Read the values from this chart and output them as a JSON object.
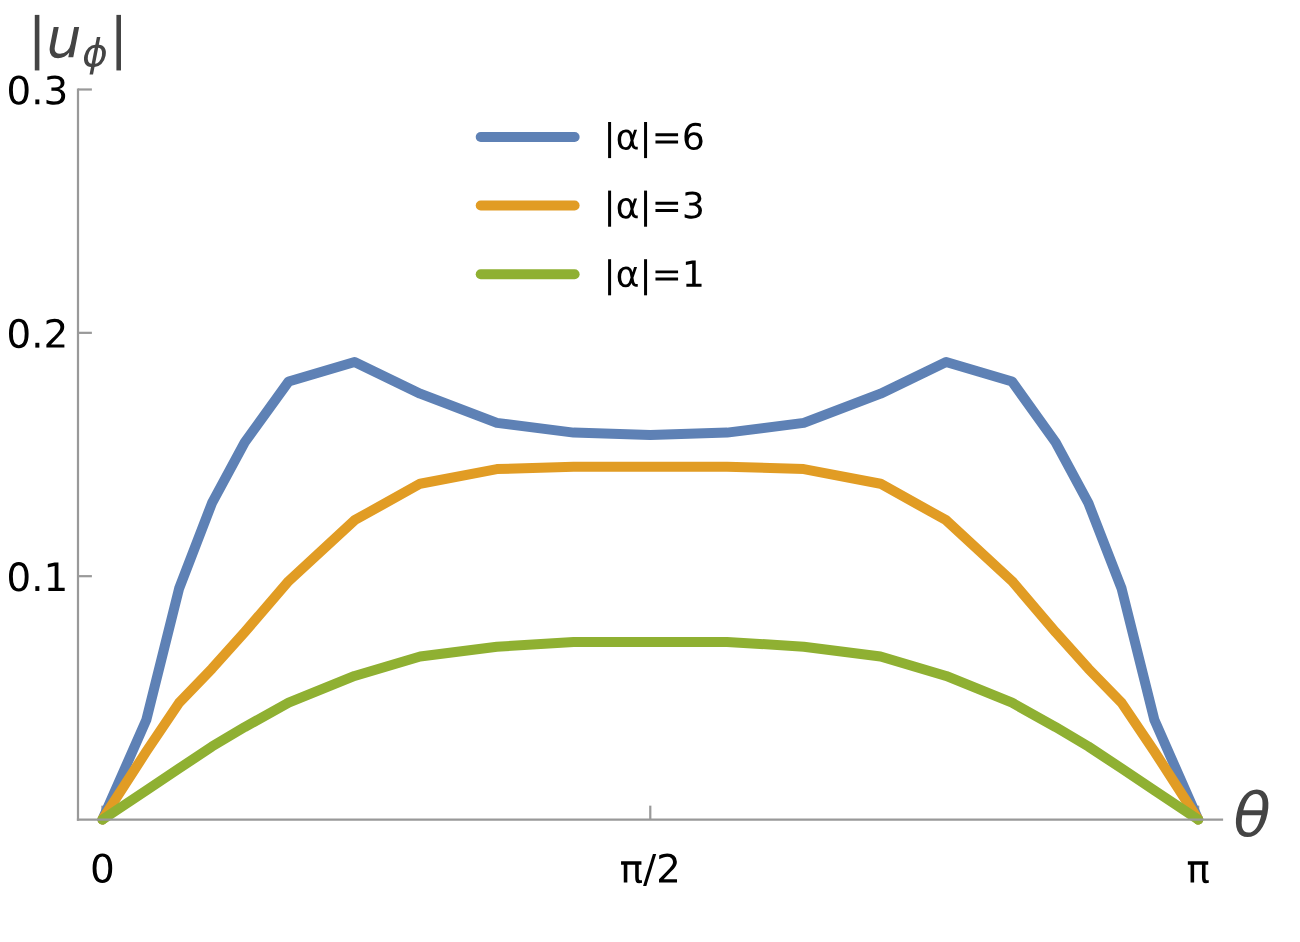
{
  "chart_data": {
    "type": "line",
    "xlabel": "θ",
    "ylabel": "|u$_{ϕ}$|",
    "x": [
      0,
      0.126,
      0.22,
      0.314,
      0.408,
      0.534,
      0.723,
      0.911,
      1.131,
      1.351,
      1.571,
      1.791,
      2.011,
      2.231,
      2.419,
      2.608,
      2.733,
      2.827,
      2.922,
      3.016,
      3.142
    ],
    "series": [
      {
        "name": "|α|=6",
        "color": "#5e81b5",
        "values": [
          0,
          0.041,
          0.095,
          0.13,
          0.155,
          0.18,
          0.188,
          0.175,
          0.163,
          0.159,
          0.158,
          0.159,
          0.163,
          0.175,
          0.188,
          0.18,
          0.155,
          0.13,
          0.095,
          0.041,
          0
        ]
      },
      {
        "name": "|α|=3",
        "color": "#e19c24",
        "values": [
          0,
          0.028,
          0.048,
          0.062,
          0.077,
          0.098,
          0.123,
          0.138,
          0.144,
          0.145,
          0.145,
          0.145,
          0.144,
          0.138,
          0.123,
          0.098,
          0.077,
          0.062,
          0.048,
          0.028,
          0
        ]
      },
      {
        "name": "|α|=1",
        "color": "#8fb032",
        "values": [
          0,
          0.012,
          0.021,
          0.03,
          0.038,
          0.048,
          0.059,
          0.067,
          0.071,
          0.073,
          0.073,
          0.073,
          0.071,
          0.067,
          0.059,
          0.048,
          0.038,
          0.03,
          0.021,
          0.012,
          0
        ]
      }
    ],
    "xlim": [
      -0.07,
      3.21
    ],
    "ylim": [
      0,
      0.3
    ],
    "xticks": [
      0,
      {
        "value": 1.5708,
        "label": "π/2"
      },
      {
        "value": 3.1416,
        "label": "π"
      }
    ],
    "yticks": [
      0.1,
      0.2,
      0.3
    ],
    "grid": false,
    "legend": "top",
    "marker": "none",
    "line_style": "solid"
  }
}
